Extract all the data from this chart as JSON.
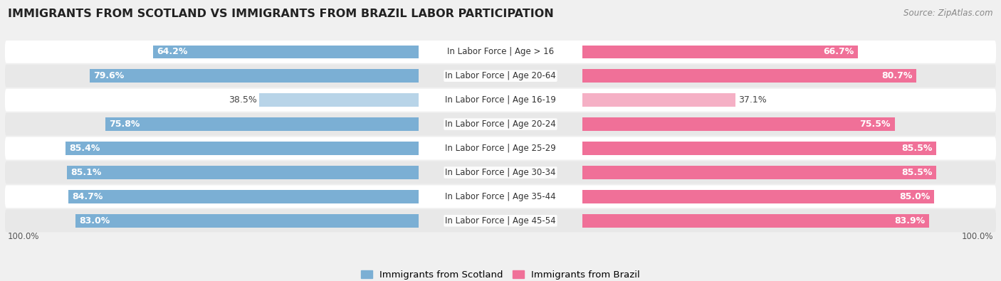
{
  "title": "IMMIGRANTS FROM SCOTLAND VS IMMIGRANTS FROM BRAZIL LABOR PARTICIPATION",
  "source": "Source: ZipAtlas.com",
  "categories": [
    "In Labor Force | Age > 16",
    "In Labor Force | Age 20-64",
    "In Labor Force | Age 16-19",
    "In Labor Force | Age 20-24",
    "In Labor Force | Age 25-29",
    "In Labor Force | Age 30-34",
    "In Labor Force | Age 35-44",
    "In Labor Force | Age 45-54"
  ],
  "scotland_values": [
    64.2,
    79.6,
    38.5,
    75.8,
    85.4,
    85.1,
    84.7,
    83.0
  ],
  "brazil_values": [
    66.7,
    80.7,
    37.1,
    75.5,
    85.5,
    85.5,
    85.0,
    83.9
  ],
  "scotland_color": "#7BAFD4",
  "scotland_color_light": "#B8D4E8",
  "brazil_color": "#F07098",
  "brazil_color_light": "#F5B0C5",
  "background_color": "#f0f0f0",
  "row_bg_even": "#ffffff",
  "row_bg_odd": "#e8e8e8",
  "max_value": 100.0,
  "label_fontsize": 9.0,
  "title_fontsize": 11.5,
  "source_fontsize": 8.5,
  "legend_fontsize": 9.5,
  "cat_fontsize": 8.5,
  "val_fontsize_in": 9.0,
  "val_fontsize_out": 9.0
}
